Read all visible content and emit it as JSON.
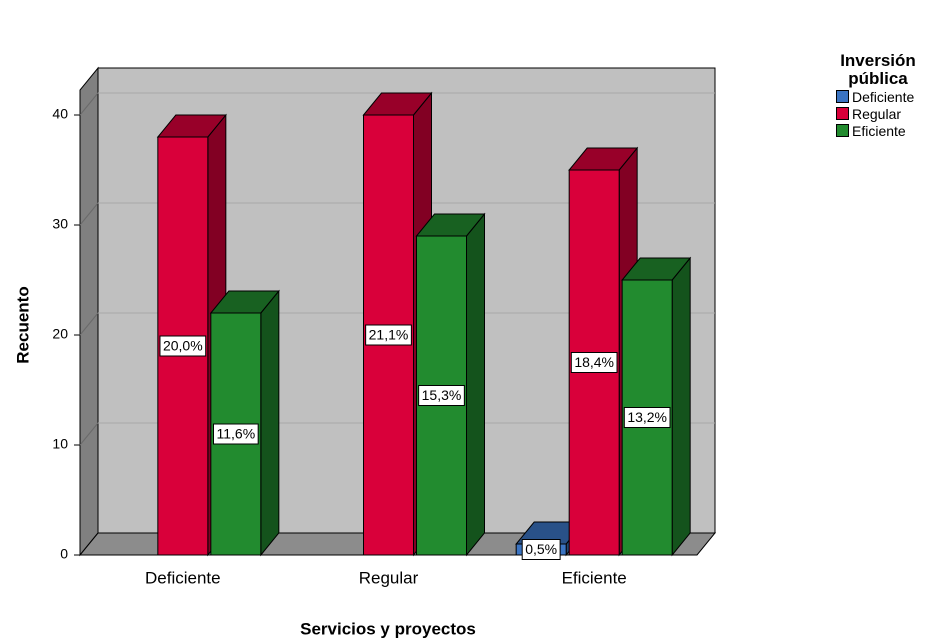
{
  "chart_data": {
    "type": "bar3d",
    "x_label": "Servicios y proyectos",
    "y_label": "Recuento",
    "legend_title": "Inversión pública",
    "categories": [
      "Deficiente",
      "Regular",
      "Eficiente"
    ],
    "series": [
      {
        "name": "Deficiente",
        "color": "#3b74c2",
        "values": [
          null,
          null,
          1
        ],
        "value_labels": [
          null,
          null,
          "0,5%"
        ]
      },
      {
        "name": "Regular",
        "color": "#d9003a",
        "values": [
          38,
          40,
          35
        ],
        "value_labels": [
          "20,0%",
          "21,1%",
          "18,4%"
        ]
      },
      {
        "name": "Eficiente",
        "color": "#228b2f",
        "values": [
          22,
          29,
          25
        ],
        "value_labels": [
          "11,6%",
          "15,3%",
          "13,2%"
        ]
      }
    ],
    "ylim": [
      0,
      42
    ],
    "yticks": [
      0,
      10,
      20,
      30,
      40
    ],
    "grid": true,
    "legend": "top-right"
  }
}
